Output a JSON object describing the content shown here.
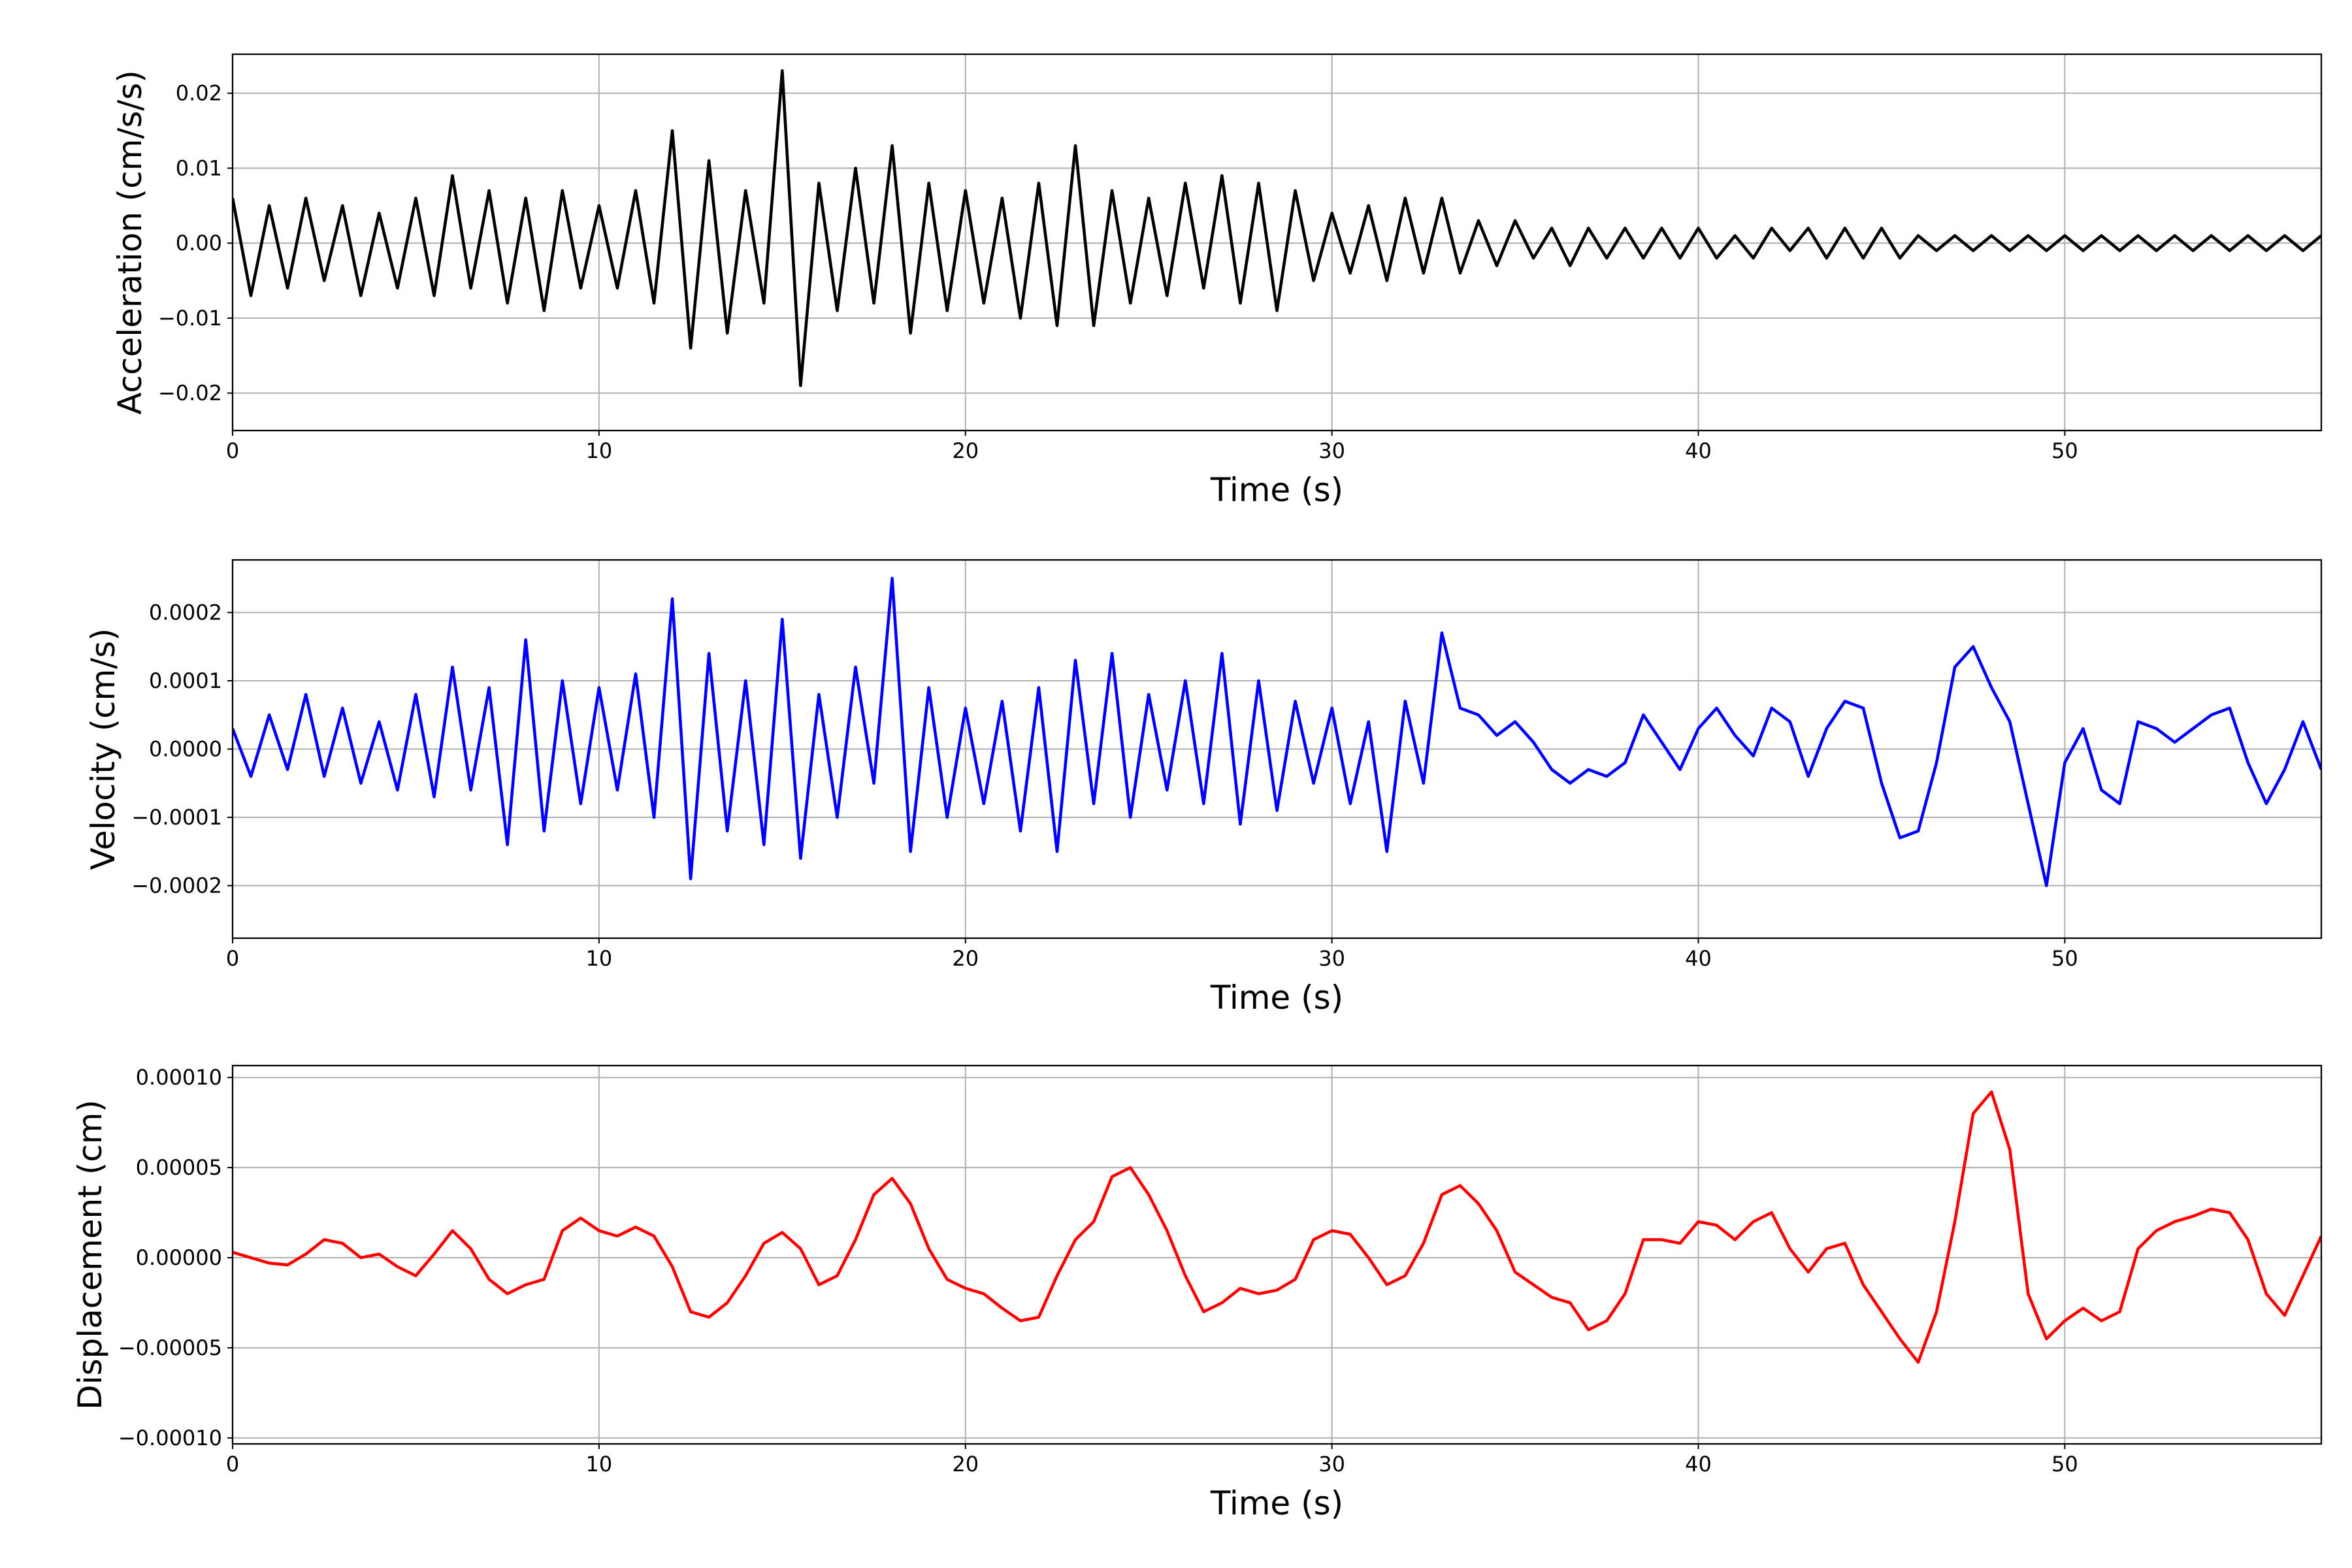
{
  "chart_data": [
    {
      "type": "line",
      "xlabel": "Time (s)",
      "ylabel": "Acceleration (cm/s/s)",
      "color": "#000000",
      "grid": true,
      "xlim": [
        0,
        57
      ],
      "xticks": [
        0,
        10,
        20,
        30,
        40,
        50
      ],
      "ylim": [
        -0.025,
        0.0252
      ],
      "yticks": [
        {
          "value": -0.02,
          "label": "−0.02"
        },
        {
          "value": -0.01,
          "label": "−0.01"
        },
        {
          "value": 0,
          "label": "0.00"
        },
        0.01,
        0.02
      ],
      "x": [
        0,
        0.5,
        1,
        1.5,
        2,
        2.5,
        3,
        3.5,
        4,
        4.5,
        5,
        5.5,
        6,
        6.5,
        7,
        7.5,
        8,
        8.5,
        9,
        9.5,
        10,
        10.5,
        11,
        11.5,
        12,
        12.5,
        13,
        13.5,
        14,
        14.5,
        15,
        15.5,
        16,
        16.5,
        17,
        17.5,
        18,
        18.5,
        19,
        19.5,
        20,
        20.5,
        21,
        21.5,
        22,
        22.5,
        23,
        23.5,
        24,
        24.5,
        25,
        25.5,
        26,
        26.5,
        27,
        27.5,
        28,
        28.5,
        29,
        29.5,
        30,
        30.5,
        31,
        31.5,
        32,
        32.5,
        33,
        33.5,
        34,
        34.5,
        35,
        35.5,
        36,
        36.5,
        37,
        37.5,
        38,
        38.5,
        39,
        39.5,
        40,
        40.5,
        41,
        41.5,
        42,
        42.5,
        43,
        43.5,
        44,
        44.5,
        45,
        45.5,
        46,
        46.5,
        47,
        47.5,
        48,
        48.5,
        49,
        49.5,
        50,
        50.5,
        51,
        51.5,
        52,
        52.5,
        53,
        53.5,
        54,
        54.5,
        55,
        55.5,
        56,
        56.5,
        57
      ],
      "values": [
        0.006,
        -0.007,
        0.005,
        -0.006,
        0.006,
        -0.005,
        0.005,
        -0.007,
        0.004,
        -0.006,
        0.006,
        -0.007,
        0.009,
        -0.006,
        0.007,
        -0.008,
        0.006,
        -0.009,
        0.007,
        -0.006,
        0.005,
        -0.006,
        0.007,
        -0.008,
        0.015,
        -0.014,
        0.011,
        -0.012,
        0.007,
        -0.008,
        0.023,
        -0.019,
        0.008,
        -0.009,
        0.01,
        -0.008,
        0.013,
        -0.012,
        0.008,
        -0.009,
        0.007,
        -0.008,
        0.006,
        -0.01,
        0.008,
        -0.011,
        0.013,
        -0.011,
        0.007,
        -0.008,
        0.006,
        -0.007,
        0.008,
        -0.006,
        0.009,
        -0.008,
        0.008,
        -0.009,
        0.007,
        -0.005,
        0.004,
        -0.004,
        0.005,
        -0.005,
        0.006,
        -0.004,
        0.006,
        -0.004,
        0.003,
        -0.003,
        0.003,
        -0.002,
        0.002,
        -0.003,
        0.002,
        -0.002,
        0.002,
        -0.002,
        0.002,
        -0.002,
        0.002,
        -0.002,
        0.001,
        -0.002,
        0.002,
        -0.001,
        0.002,
        -0.002,
        0.002,
        -0.002,
        0.002,
        -0.002,
        0.001,
        -0.001,
        0.001,
        -0.001,
        0.001,
        -0.001,
        0.001,
        -0.001,
        0.001,
        -0.001,
        0.001,
        -0.001,
        0.001,
        -0.001,
        0.001,
        -0.001,
        0.001,
        -0.001,
        0.001,
        -0.001,
        0.001,
        -0.001,
        0.001
      ]
    },
    {
      "type": "line",
      "xlabel": "Time (s)",
      "ylabel": "Velocity (cm/s)",
      "color": "#0000ff",
      "grid": true,
      "xlim": [
        0,
        57
      ],
      "xticks": [
        0,
        10,
        20,
        30,
        40,
        50
      ],
      "ylim": [
        -0.000277,
        0.000277
      ],
      "yticks": [
        {
          "value": -0.0002,
          "label": "−0.0002"
        },
        {
          "value": -0.0001,
          "label": "−0.0001"
        },
        {
          "value": 0,
          "label": "0.0000"
        },
        0.0001,
        0.0002
      ],
      "x": [
        0,
        0.5,
        1,
        1.5,
        2,
        2.5,
        3,
        3.5,
        4,
        4.5,
        5,
        5.5,
        6,
        6.5,
        7,
        7.5,
        8,
        8.5,
        9,
        9.5,
        10,
        10.5,
        11,
        11.5,
        12,
        12.5,
        13,
        13.5,
        14,
        14.5,
        15,
        15.5,
        16,
        16.5,
        17,
        17.5,
        18,
        18.5,
        19,
        19.5,
        20,
        20.5,
        21,
        21.5,
        22,
        22.5,
        23,
        23.5,
        24,
        24.5,
        25,
        25.5,
        26,
        26.5,
        27,
        27.5,
        28,
        28.5,
        29,
        29.5,
        30,
        30.5,
        31,
        31.5,
        32,
        32.5,
        33,
        33.5,
        34,
        34.5,
        35,
        35.5,
        36,
        36.5,
        37,
        37.5,
        38,
        38.5,
        39,
        39.5,
        40,
        40.5,
        41,
        41.5,
        42,
        42.5,
        43,
        43.5,
        44,
        44.5,
        45,
        45.5,
        46,
        46.5,
        47,
        47.5,
        48,
        48.5,
        49,
        49.5,
        50,
        50.5,
        51,
        51.5,
        52,
        52.5,
        53,
        53.5,
        54,
        54.5,
        55,
        55.5,
        56,
        56.5,
        57
      ],
      "values": [
        3e-05,
        -4e-05,
        5e-05,
        -3e-05,
        8e-05,
        -4e-05,
        6e-05,
        -5e-05,
        4e-05,
        -6e-05,
        8e-05,
        -7e-05,
        0.00012,
        -6e-05,
        9e-05,
        -0.00014,
        0.00016,
        -0.00012,
        0.0001,
        -8e-05,
        9e-05,
        -6e-05,
        0.00011,
        -0.0001,
        0.00022,
        -0.00019,
        0.00014,
        -0.00012,
        0.0001,
        -0.00014,
        0.00019,
        -0.00016,
        8e-05,
        -0.0001,
        0.00012,
        -5e-05,
        0.00025,
        -0.00015,
        9e-05,
        -0.0001,
        6e-05,
        -8e-05,
        7e-05,
        -0.00012,
        9e-05,
        -0.00015,
        0.00013,
        -8e-05,
        0.00014,
        -0.0001,
        8e-05,
        -6e-05,
        0.0001,
        -8e-05,
        0.00014,
        -0.00011,
        0.0001,
        -9e-05,
        7e-05,
        -5e-05,
        6e-05,
        -8e-05,
        4e-05,
        -0.00015,
        7e-05,
        -5e-05,
        0.00017,
        6e-05,
        5e-05,
        2e-05,
        4e-05,
        1e-05,
        -3e-05,
        -5e-05,
        -3e-05,
        -4e-05,
        -2e-05,
        5e-05,
        1e-05,
        -3e-05,
        3e-05,
        6e-05,
        2e-05,
        -1e-05,
        6e-05,
        4e-05,
        -4e-05,
        3e-05,
        7e-05,
        6e-05,
        -5e-05,
        -0.00013,
        -0.00012,
        -2e-05,
        0.00012,
        0.00015,
        9e-05,
        4e-05,
        -8e-05,
        -0.0002,
        -2e-05,
        3e-05,
        -6e-05,
        -8e-05,
        4e-05,
        3e-05,
        1e-05,
        3e-05,
        5e-05,
        6e-05,
        -2e-05,
        -8e-05,
        -3e-05,
        4e-05,
        -3e-05
      ]
    },
    {
      "type": "line",
      "xlabel": "Time (s)",
      "ylabel": "Displacement (cm)",
      "color": "#ff0000",
      "grid": true,
      "xlim": [
        0,
        57
      ],
      "xticks": [
        0,
        10,
        20,
        30,
        40,
        50
      ],
      "ylim": [
        -0.0001033,
        0.0001066
      ],
      "yticks": [
        {
          "value": -0.0001,
          "label": "−0.00010"
        },
        {
          "value": -5e-05,
          "label": "−0.00005"
        },
        {
          "value": 0,
          "label": "0.00000"
        },
        5e-05,
        {
          "value": 0.0001,
          "label": "0.00010"
        }
      ],
      "x": [
        0,
        0.5,
        1,
        1.5,
        2,
        2.5,
        3,
        3.5,
        4,
        4.5,
        5,
        5.5,
        6,
        6.5,
        7,
        7.5,
        8,
        8.5,
        9,
        9.5,
        10,
        10.5,
        11,
        11.5,
        12,
        12.5,
        13,
        13.5,
        14,
        14.5,
        15,
        15.5,
        16,
        16.5,
        17,
        17.5,
        18,
        18.5,
        19,
        19.5,
        20,
        20.5,
        21,
        21.5,
        22,
        22.5,
        23,
        23.5,
        24,
        24.5,
        25,
        25.5,
        26,
        26.5,
        27,
        27.5,
        28,
        28.5,
        29,
        29.5,
        30,
        30.5,
        31,
        31.5,
        32,
        32.5,
        33,
        33.5,
        34,
        34.5,
        35,
        35.5,
        36,
        36.5,
        37,
        37.5,
        38,
        38.5,
        39,
        39.5,
        40,
        40.5,
        41,
        41.5,
        42,
        42.5,
        43,
        43.5,
        44,
        44.5,
        45,
        45.5,
        46,
        46.5,
        47,
        47.5,
        48,
        48.5,
        49,
        49.5,
        50,
        50.5,
        51,
        51.5,
        52,
        52.5,
        53,
        53.5,
        54,
        54.5,
        55,
        55.5,
        56,
        56.5,
        57
      ],
      "values": [
        3e-06,
        0,
        -3e-06,
        -4e-06,
        2e-06,
        1e-05,
        8e-06,
        0,
        2e-06,
        -5e-06,
        -1e-05,
        2e-06,
        1.5e-05,
        5e-06,
        -1.2e-05,
        -2e-05,
        -1.5e-05,
        -1.2e-05,
        1.5e-05,
        2.2e-05,
        1.5e-05,
        1.2e-05,
        1.7e-05,
        1.2e-05,
        -5e-06,
        -3e-05,
        -3.3e-05,
        -2.5e-05,
        -1e-05,
        8e-06,
        1.4e-05,
        5e-06,
        -1.5e-05,
        -1e-05,
        1e-05,
        3.5e-05,
        4.4e-05,
        3e-05,
        5e-06,
        -1.2e-05,
        -1.7e-05,
        -2e-05,
        -2.8e-05,
        -3.5e-05,
        -3.3e-05,
        -1e-05,
        1e-05,
        2e-05,
        4.5e-05,
        5e-05,
        3.5e-05,
        1.5e-05,
        -1e-05,
        -3e-05,
        -2.5e-05,
        -1.7e-05,
        -2e-05,
        -1.8e-05,
        -1.2e-05,
        1e-05,
        1.5e-05,
        1.3e-05,
        0,
        -1.5e-05,
        -1e-05,
        8e-06,
        3.5e-05,
        4e-05,
        3e-05,
        1.5e-05,
        -8e-06,
        -1.5e-05,
        -2.2e-05,
        -2.5e-05,
        -4e-05,
        -3.5e-05,
        -2e-05,
        1e-05,
        1e-05,
        8e-06,
        2e-05,
        1.8e-05,
        1e-05,
        2e-05,
        2.5e-05,
        5e-06,
        -8e-06,
        5e-06,
        8e-06,
        -1.5e-05,
        -3e-05,
        -4.5e-05,
        -5.8e-05,
        -3e-05,
        2e-05,
        8e-05,
        9.2e-05,
        6e-05,
        -2e-05,
        -4.5e-05,
        -3.5e-05,
        -2.8e-05,
        -3.5e-05,
        -3e-05,
        5e-06,
        1.5e-05,
        2e-05,
        2.3e-05,
        2.7e-05,
        2.5e-05,
        1e-05,
        -2e-05,
        -3.2e-05,
        -1e-05,
        1.2e-05
      ]
    }
  ]
}
